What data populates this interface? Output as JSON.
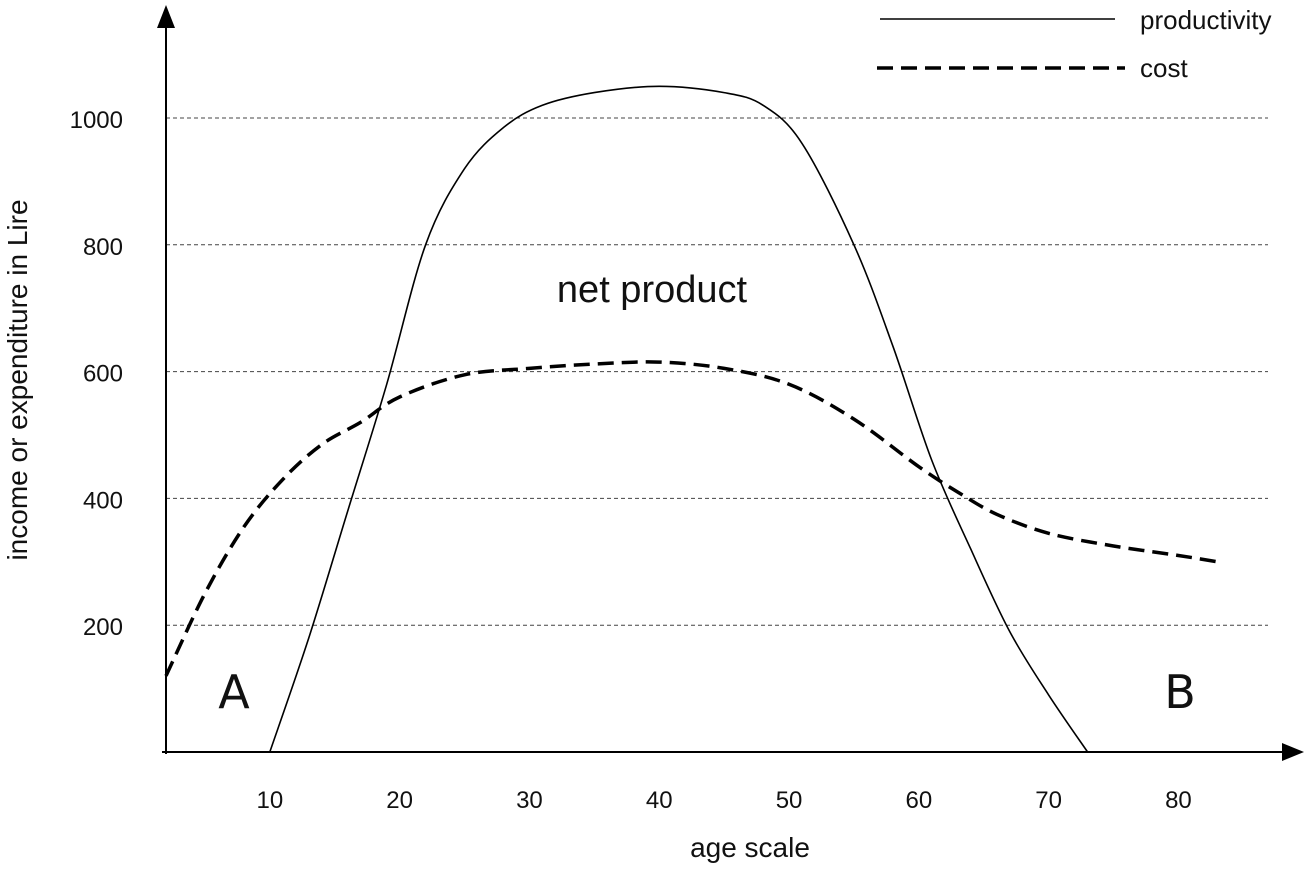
{
  "chart_data": {
    "type": "line",
    "xlabel": "age scale",
    "ylabel": "income or expenditure in Lire",
    "xlim": [
      2,
      84
    ],
    "ylim": [
      0,
      1100
    ],
    "x_ticks": [
      10,
      20,
      30,
      40,
      50,
      60,
      70,
      80
    ],
    "y_ticks": [
      200,
      400,
      600,
      800,
      1000
    ],
    "grid": "horizontal dashed",
    "legend_position": "top-right",
    "annotations": [
      {
        "text": "net product",
        "x": 37,
        "y": 730
      },
      {
        "text": "A",
        "x": 7,
        "y": 95
      },
      {
        "text": "B",
        "x": 78,
        "y": 95
      }
    ],
    "series": [
      {
        "name": "productivity",
        "style": "solid",
        "points": [
          [
            10,
            0
          ],
          [
            13,
            180
          ],
          [
            16,
            380
          ],
          [
            19,
            580
          ],
          [
            22,
            800
          ],
          [
            25,
            920
          ],
          [
            28,
            985
          ],
          [
            31,
            1020
          ],
          [
            35,
            1040
          ],
          [
            40,
            1050
          ],
          [
            45,
            1040
          ],
          [
            48,
            1020
          ],
          [
            51,
            960
          ],
          [
            55,
            800
          ],
          [
            58,
            640
          ],
          [
            61,
            460
          ],
          [
            64,
            320
          ],
          [
            67,
            190
          ],
          [
            70,
            90
          ],
          [
            73,
            0
          ]
        ]
      },
      {
        "name": "cost",
        "style": "dashed",
        "points": [
          [
            2,
            120
          ],
          [
            5,
            250
          ],
          [
            8,
            355
          ],
          [
            11,
            430
          ],
          [
            14,
            485
          ],
          [
            17,
            520
          ],
          [
            20,
            560
          ],
          [
            25,
            595
          ],
          [
            30,
            605
          ],
          [
            35,
            612
          ],
          [
            40,
            615
          ],
          [
            45,
            605
          ],
          [
            50,
            580
          ],
          [
            55,
            525
          ],
          [
            60,
            450
          ],
          [
            63,
            410
          ],
          [
            66,
            375
          ],
          [
            70,
            345
          ],
          [
            75,
            325
          ],
          [
            80,
            310
          ],
          [
            83,
            300
          ]
        ]
      }
    ]
  }
}
